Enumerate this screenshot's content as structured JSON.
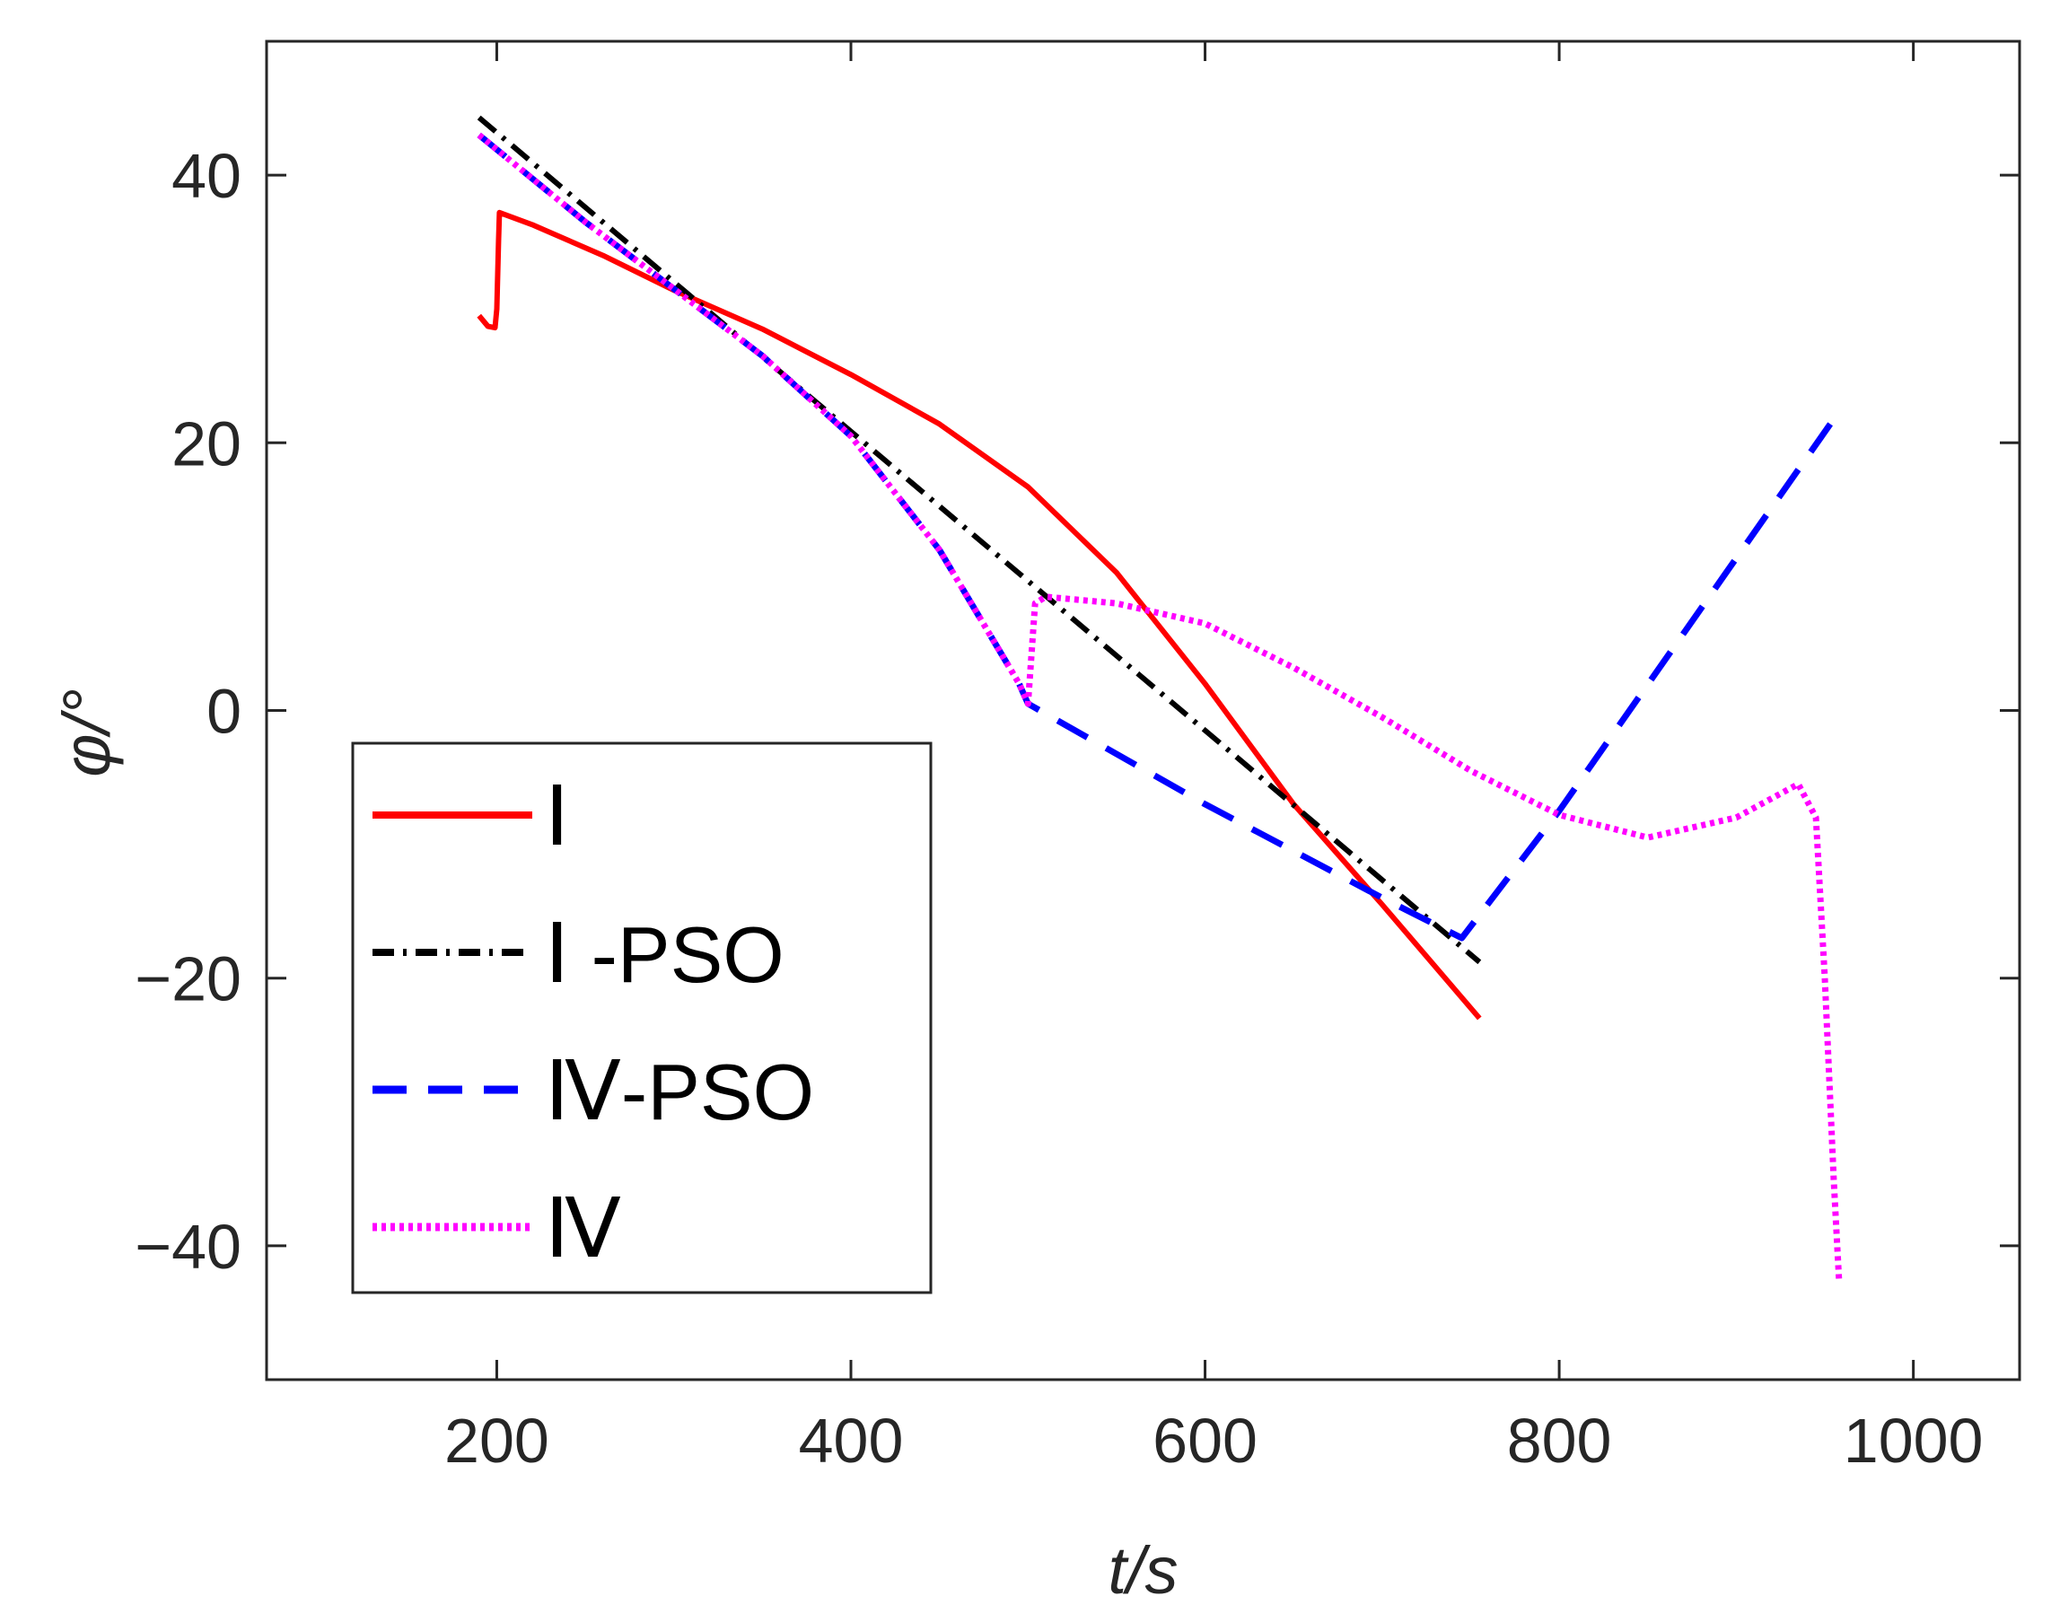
{
  "chart_data": {
    "type": "line",
    "title": "",
    "xlabel": "t/s",
    "ylabel": "φ/°",
    "xlim": [
      70,
      1060
    ],
    "ylim": [
      -50,
      50
    ],
    "xticks": [
      200,
      400,
      600,
      800,
      1000
    ],
    "yticks": [
      -40,
      -20,
      0,
      20,
      40
    ],
    "xtick_labels": [
      "200",
      "400",
      "600",
      "800",
      "1000"
    ],
    "ytick_labels": [
      "−40",
      "−20",
      "0",
      "20",
      "40"
    ],
    "grid": false,
    "legend_position": "bottom-left",
    "series": [
      {
        "name": "Ⅰ",
        "roman": "Ⅰ",
        "suffix": "",
        "color": "#ff0000",
        "style": "solid",
        "x": [
          190,
          195,
          199,
          200,
          201,
          201.5,
          220,
          260,
          300,
          350,
          400,
          450,
          500,
          550,
          600,
          650,
          700,
          755
        ],
        "y": [
          29.5,
          28.7,
          28.6,
          30,
          35,
          37.2,
          36.3,
          34.0,
          31.4,
          28.5,
          25.1,
          21.4,
          16.7,
          10.3,
          2.0,
          -7.0,
          -14.5,
          -23.0
        ]
      },
      {
        "name": "Ⅰ-PSO",
        "roman": "Ⅰ",
        "suffix": " -PSO",
        "color": "#000000",
        "style": "dashdot",
        "x": [
          190,
          755
        ],
        "y": [
          44.3,
          -18.8
        ]
      },
      {
        "name": "Ⅳ-PSO",
        "roman": "Ⅳ",
        "suffix": "-PSO",
        "color": "#0000ff",
        "style": "dashed",
        "x": [
          190,
          250,
          300,
          350,
          400,
          450,
          495,
          500,
          600,
          700,
          745,
          800,
          960
        ],
        "y": [
          43.0,
          36.5,
          31.5,
          26.5,
          20.5,
          12.0,
          2.0,
          0.5,
          -7.0,
          -14.0,
          -17.0,
          -7.5,
          22.7
        ]
      },
      {
        "name": "Ⅳ",
        "roman": "Ⅳ",
        "suffix": "",
        "color": "#ff00ff",
        "style": "dotted",
        "x": [
          190,
          250,
          300,
          350,
          400,
          450,
          495,
          500,
          504,
          510,
          550,
          600,
          650,
          700,
          750,
          800,
          850,
          900,
          935,
          945,
          950,
          955,
          958
        ],
        "y": [
          43.0,
          36.5,
          31.5,
          26.5,
          20.5,
          12.0,
          2.0,
          0.5,
          8.0,
          8.5,
          8.0,
          6.5,
          3.2,
          -0.5,
          -4.5,
          -7.8,
          -9.5,
          -8.0,
          -5.5,
          -8.0,
          -20.0,
          -35.0,
          -42.5
        ]
      }
    ]
  }
}
